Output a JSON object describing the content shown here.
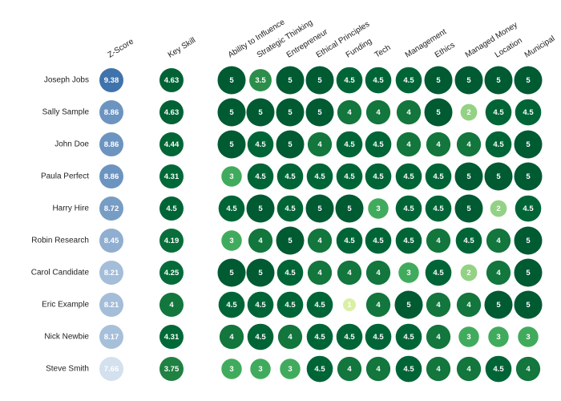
{
  "chart_data": {
    "type": "heatmap",
    "columns": [
      "Z-Score",
      "Key Skill",
      "Ability to Influence",
      "Strategic Thinking",
      "Entrepreneur",
      "Ethical Principles",
      "Funding",
      "Tech",
      "Management",
      "Ethics",
      "Managed Money",
      "Location",
      "Municipal"
    ],
    "rows": [
      {
        "name": "Joseph Jobs",
        "values": [
          "9.38",
          "4.63",
          "5",
          "3.5",
          "5",
          "5",
          "4.5",
          "4.5",
          "4.5",
          "5",
          "5",
          "5",
          "5"
        ]
      },
      {
        "name": "Sally Sample",
        "values": [
          "8.86",
          "4.63",
          "5",
          "5",
          "5",
          "5",
          "4",
          "4",
          "4",
          "5",
          "2",
          "4.5",
          "4.5"
        ]
      },
      {
        "name": "John Doe",
        "values": [
          "8.86",
          "4.44",
          "5",
          "4.5",
          "5",
          "4",
          "4.5",
          "4.5",
          "4",
          "4",
          "4",
          "4.5",
          "5"
        ]
      },
      {
        "name": "Paula Perfect",
        "values": [
          "8.86",
          "4.31",
          "3",
          "4.5",
          "4.5",
          "4.5",
          "4.5",
          "4.5",
          "4.5",
          "4.5",
          "5",
          "5",
          "5"
        ]
      },
      {
        "name": "Harry Hire",
        "values": [
          "8.72",
          "4.5",
          "4.5",
          "5",
          "4.5",
          "5",
          "5",
          "3",
          "4.5",
          "4.5",
          "5",
          "2",
          "4.5"
        ]
      },
      {
        "name": "Robin Research",
        "values": [
          "8.45",
          "4.19",
          "3",
          "4",
          "5",
          "4",
          "4.5",
          "4.5",
          "4.5",
          "4",
          "4.5",
          "4",
          "5"
        ]
      },
      {
        "name": "Carol Candidate",
        "values": [
          "8.21",
          "4.25",
          "5",
          "5",
          "4.5",
          "4",
          "4",
          "4",
          "3",
          "4.5",
          "2",
          "4",
          "5"
        ]
      },
      {
        "name": "Eric Example",
        "values": [
          "8.21",
          "4",
          "4.5",
          "4.5",
          "4.5",
          "4.5",
          "1",
          "4",
          "5",
          "4",
          "4",
          "5",
          "5"
        ]
      },
      {
        "name": "Nick Newbie",
        "values": [
          "8.17",
          "4.31",
          "4",
          "4.5",
          "4",
          "4.5",
          "4.5",
          "4.5",
          "4.5",
          "4",
          "3",
          "3",
          "3"
        ]
      },
      {
        "name": "Steve Smith",
        "values": [
          "7.66",
          "3.75",
          "3",
          "3",
          "3",
          "4.5",
          "4",
          "4",
          "4.5",
          "4",
          "4",
          "4.5",
          "4"
        ]
      }
    ],
    "zscore_range": [
      7.66,
      9.38
    ],
    "skill_range": [
      1,
      5
    ],
    "colors": {
      "zscore_low": "#d3e0ee",
      "zscore_high": "#3f73ac",
      "skill_scale": [
        "#d9f0a3",
        "#addd8e",
        "#78c679",
        "#41ab5d",
        "#238443",
        "#006837",
        "#005a32"
      ]
    }
  }
}
